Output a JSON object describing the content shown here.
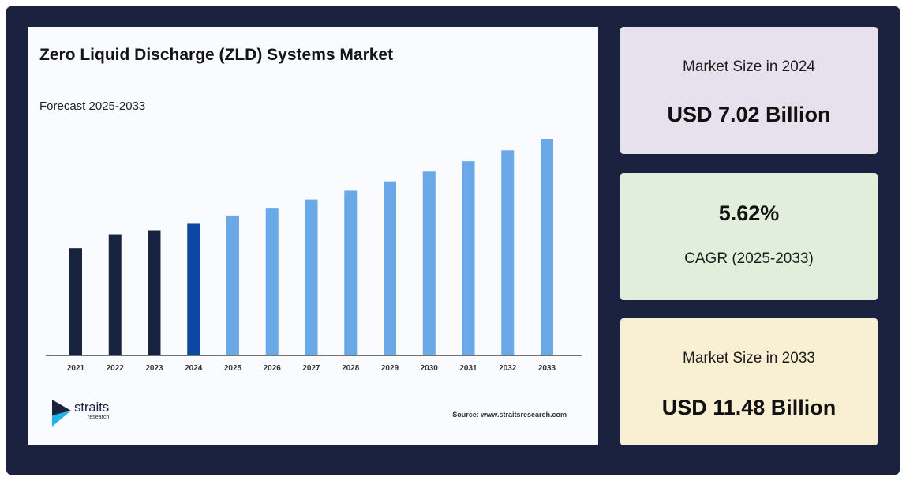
{
  "chart_data": {
    "type": "bar",
    "title": "Zero Liquid Discharge (ZLD) Systems Market",
    "subtitle": "Forecast 2025-2033",
    "categories": [
      "2021",
      "2022",
      "2023",
      "2024",
      "2025",
      "2026",
      "2027",
      "2028",
      "2029",
      "2030",
      "2031",
      "2032",
      "2033"
    ],
    "values": [
      5.69,
      6.43,
      6.64,
      7.02,
      7.42,
      7.83,
      8.27,
      8.74,
      9.23,
      9.75,
      10.3,
      10.88,
      11.48
    ],
    "ylim": [
      0,
      11.48
    ],
    "grid": false,
    "colors": {
      "historical": "#18233f",
      "base_year": "#0d47a1",
      "forecast": "#6aa8e8"
    },
    "base_year": "2024",
    "forecast_start": "2025"
  },
  "source": "Source: www.straitsresearch.com",
  "logo": {
    "word": "straits",
    "sub": "research"
  },
  "cards": {
    "size_2024": {
      "label": "Market Size in 2024",
      "value": "USD 7.02 Billion"
    },
    "cagr": {
      "value": "5.62%",
      "label": "CAGR (2025-2033)"
    },
    "size_2033": {
      "label": "Market Size in 2033",
      "value": "USD 11.48 Billion"
    }
  }
}
